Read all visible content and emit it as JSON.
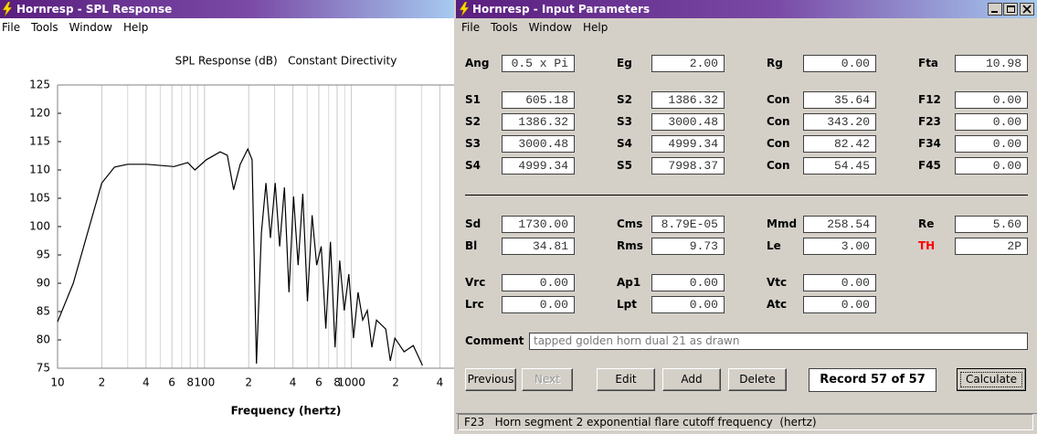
{
  "chart_window": {
    "title": "Hornresp - SPL Response",
    "menu": [
      "File",
      "Tools",
      "Window",
      "Help"
    ]
  },
  "chart_data": {
    "type": "line",
    "title": "SPL Response (dB)   Constant Directivity",
    "x_label": "Frequency (hertz)",
    "xscale": "log",
    "color": "#000000",
    "xgrid": true,
    "x": [
      10,
      12.8,
      17,
      20,
      24.4,
      30,
      40.4,
      62,
      77,
      86,
      103,
      128,
      143,
      158,
      175,
      197,
      211,
      226,
      244,
      262,
      281,
      303,
      325,
      350,
      376,
      404,
      434,
      467,
      502,
      540,
      580,
      623,
      670,
      720,
      774,
      832,
      894,
      961,
      1033,
      1110,
      1194,
      1283,
      1379,
      1482,
      1712,
      1840,
      1977,
      2283,
      2637,
      3046
    ],
    "values": [
      83.2,
      90,
      101.3,
      107.7,
      110.5,
      111,
      111,
      110.6,
      111.3,
      110,
      111.8,
      113.2,
      112.6,
      106.5,
      111,
      113.7,
      111.8,
      75.8,
      98.9,
      107.7,
      98,
      107.7,
      96.5,
      106.9,
      88.4,
      105.3,
      93.2,
      105.8,
      86.8,
      102,
      93.2,
      96.5,
      82,
      97.3,
      78.7,
      94,
      85.2,
      91.6,
      80.3,
      88.4,
      83.5,
      85.2,
      78.7,
      83.5,
      81.9,
      76.3,
      80.3,
      77.9,
      79,
      75.5
    ],
    "xlim": [
      10,
      5000
    ],
    "ylim": [
      75,
      125
    ],
    "xticks": [
      10,
      {
        "value": 20,
        "label": "2"
      },
      {
        "value": 40,
        "label": "4"
      },
      {
        "value": 60,
        "label": "6"
      },
      {
        "value": 80,
        "label": "8"
      },
      100,
      {
        "value": 200,
        "label": "2"
      },
      {
        "value": 400,
        "label": "4"
      },
      {
        "value": 600,
        "label": "6"
      },
      {
        "value": 800,
        "label": "8"
      },
      1000,
      {
        "value": 2000,
        "label": "2"
      },
      {
        "value": 4000,
        "label": "4"
      }
    ],
    "xminorticks": [
      30,
      50,
      70,
      90,
      300,
      500,
      700,
      900,
      3000
    ],
    "yticks": [
      75,
      80,
      85,
      90,
      95,
      100,
      105,
      110,
      115,
      120,
      125
    ]
  },
  "input_window": {
    "title": "Hornresp - Input Parameters",
    "menu": [
      "File",
      "Tools",
      "Window",
      "Help"
    ],
    "rows": [
      [
        {
          "label": "Ang",
          "value": "0.5 x Pi"
        },
        {
          "label": "Eg",
          "value": "2.00"
        },
        {
          "label": "Rg",
          "value": "0.00"
        },
        {
          "label": "Fta",
          "value": "10.98"
        }
      ],
      [
        {
          "label": "S1",
          "value": "605.18"
        },
        {
          "label": "S2",
          "value": "1386.32"
        },
        {
          "label": "Con",
          "value": "35.64"
        },
        {
          "label": "F12",
          "value": "0.00"
        }
      ],
      [
        {
          "label": "S2",
          "value": "1386.32"
        },
        {
          "label": "S3",
          "value": "3000.48"
        },
        {
          "label": "Con",
          "value": "343.20"
        },
        {
          "label": "F23",
          "value": "0.00"
        }
      ],
      [
        {
          "label": "S3",
          "value": "3000.48"
        },
        {
          "label": "S4",
          "value": "4999.34"
        },
        {
          "label": "Con",
          "value": "82.42"
        },
        {
          "label": "F34",
          "value": "0.00"
        }
      ],
      [
        {
          "label": "S4",
          "value": "4999.34"
        },
        {
          "label": "S5",
          "value": "7998.37"
        },
        {
          "label": "Con",
          "value": "54.45"
        },
        {
          "label": "F45",
          "value": "0.00"
        }
      ],
      [
        {
          "label": "Sd",
          "value": "1730.00"
        },
        {
          "label": "Cms",
          "value": "8.79E-05"
        },
        {
          "label": "Mmd",
          "value": "258.54"
        },
        {
          "label": "Re",
          "value": "5.60"
        }
      ],
      [
        {
          "label": "Bl",
          "value": "34.81"
        },
        {
          "label": "Rms",
          "value": "9.73"
        },
        {
          "label": "Le",
          "value": "3.00"
        },
        {
          "label": "TH",
          "value": "2P",
          "color": "#ff0000"
        }
      ],
      [
        {
          "label": "Vrc",
          "value": "0.00"
        },
        {
          "label": "Ap1",
          "value": "0.00"
        },
        {
          "label": "Vtc",
          "value": "0.00"
        }
      ],
      [
        {
          "label": "Lrc",
          "value": "0.00"
        },
        {
          "label": "Lpt",
          "value": "0.00"
        },
        {
          "label": "Atc",
          "value": "0.00"
        }
      ]
    ],
    "comment": {
      "label": "Comment",
      "value": "tapped golden horn dual 21 as drawn"
    },
    "buttons": [
      {
        "label": "Previous",
        "enabled": true
      },
      {
        "label": "Next",
        "enabled": false
      },
      {
        "label": "Edit",
        "enabled": true
      },
      {
        "label": "Add",
        "enabled": true
      },
      {
        "label": "Delete",
        "enabled": true
      },
      {
        "label": "Calculate",
        "enabled": true
      }
    ],
    "record": "Record 57 of 57",
    "status": "F23   Horn segment 2 exponential flare cutoff frequency  (hertz)"
  }
}
